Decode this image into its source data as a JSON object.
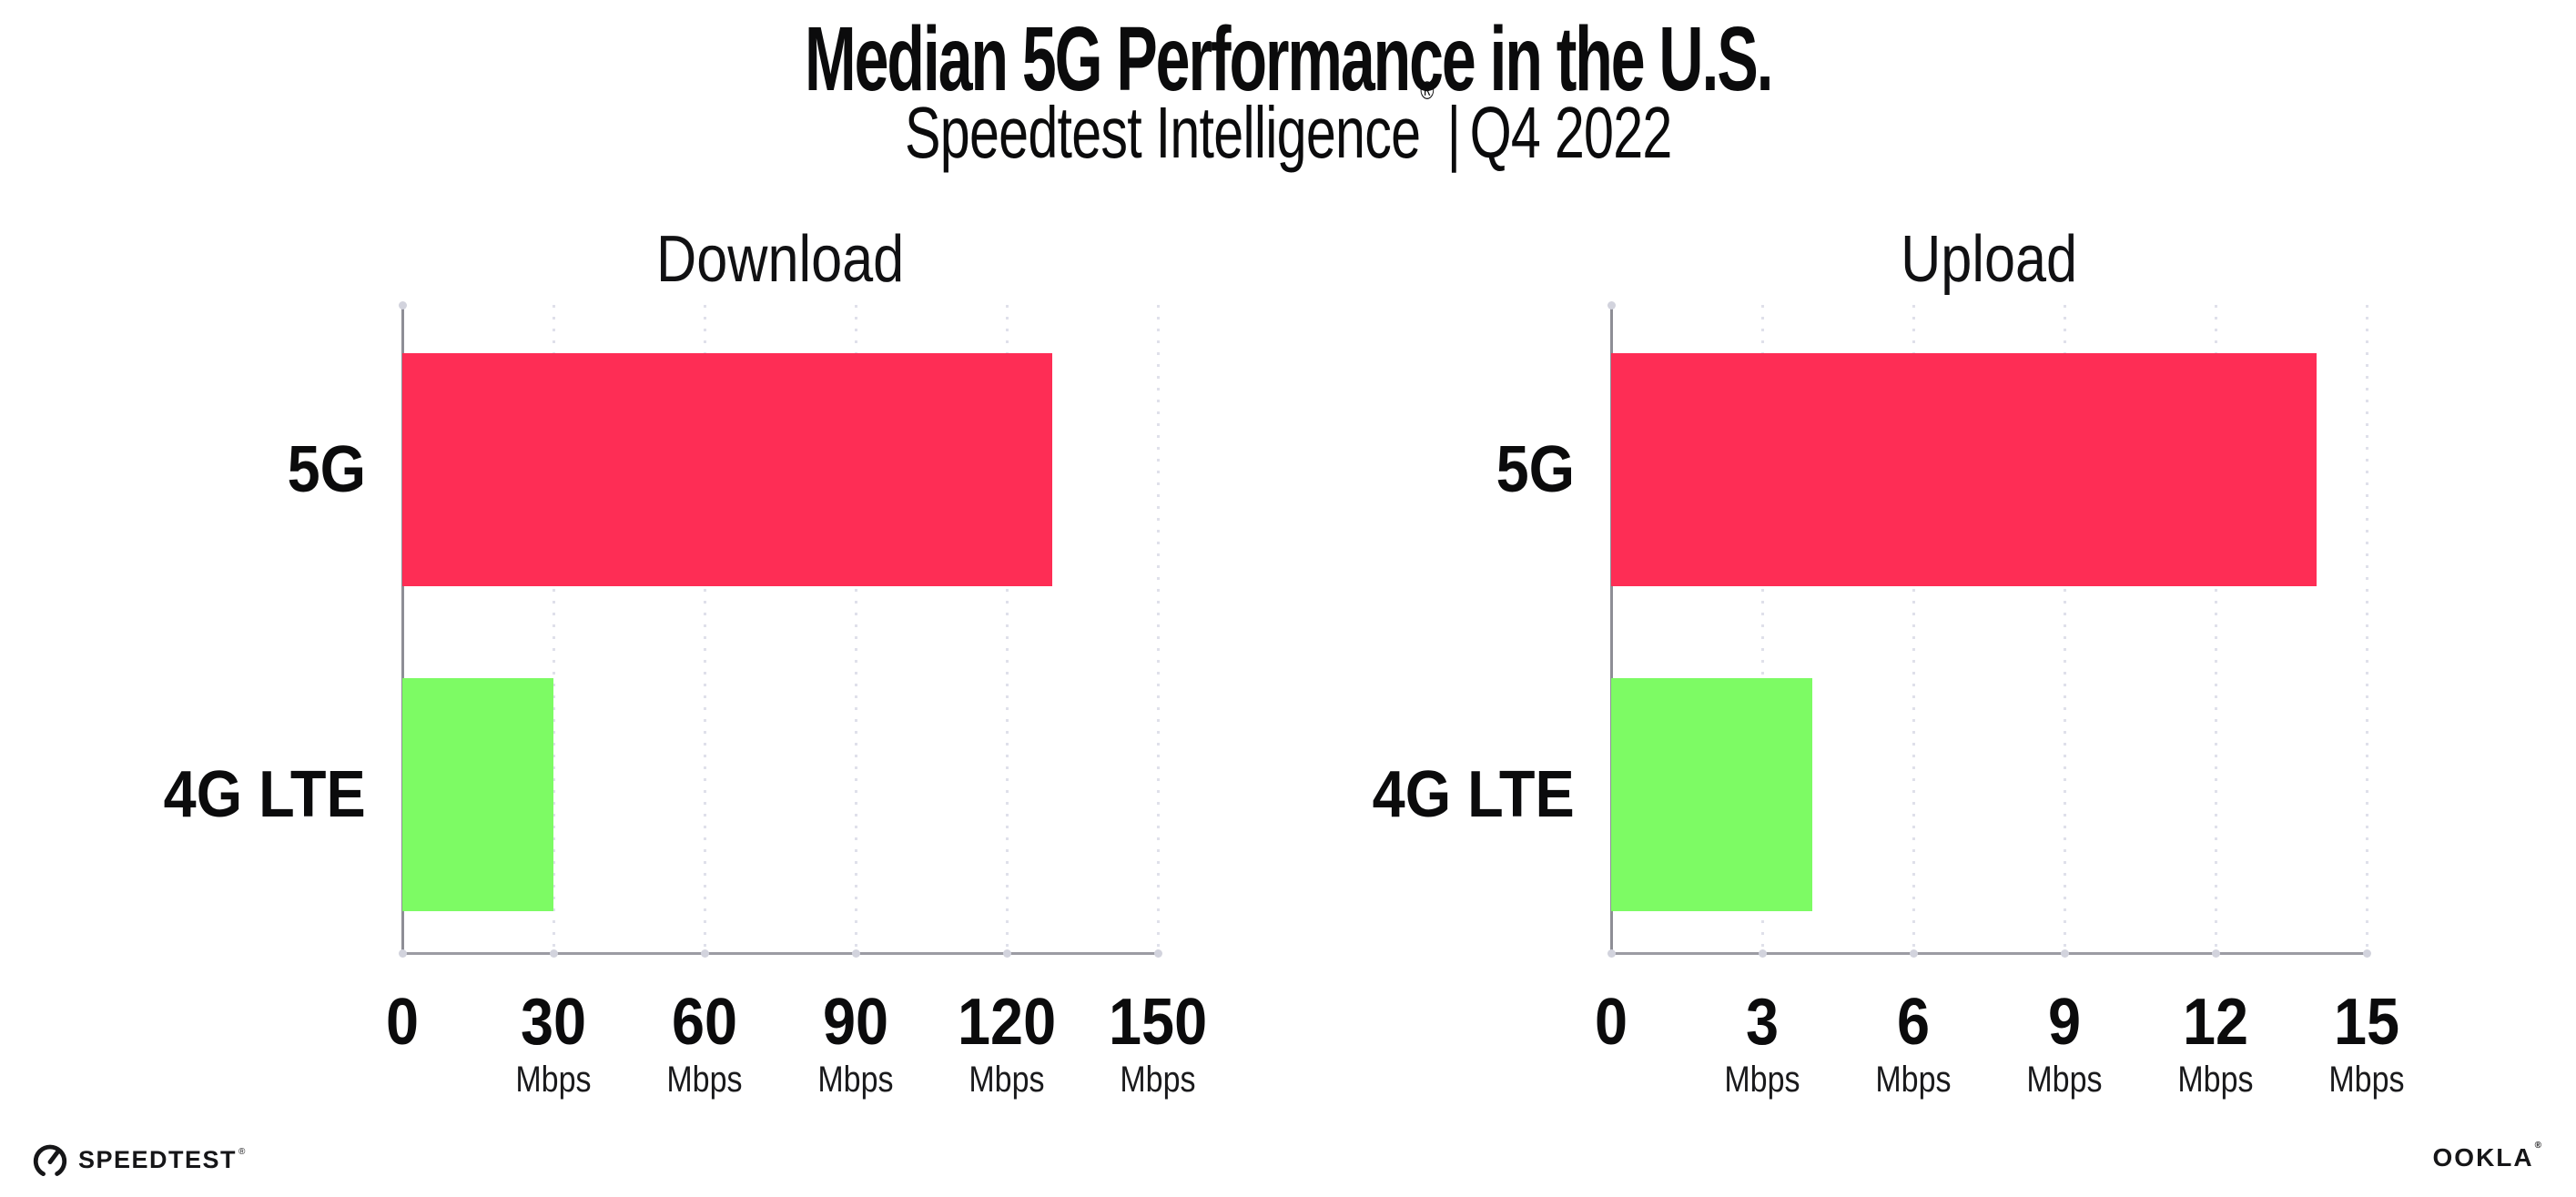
{
  "header": {
    "title": "Median 5G Performance in the U.S.",
    "subtitle_brand": "Speedtest Intelligence",
    "subtitle_reg": "®",
    "subtitle_sep": "|",
    "subtitle_period": "Q4 2022"
  },
  "colors": {
    "bar_5g": "#FE2D55",
    "bar_4g_lte": "#7DFB64",
    "gridline": "#dfe0ea",
    "axis": "#8e8e96",
    "text": "#0b0b0c"
  },
  "chart_data": [
    {
      "type": "bar",
      "orientation": "horizontal",
      "title": "Download",
      "categories": [
        "5G",
        "4G LTE"
      ],
      "values": [
        129,
        30
      ],
      "bar_colors": [
        "#FE2D55",
        "#7DFB64"
      ],
      "unit": "Mbps",
      "xlabel": "",
      "ylabel": "",
      "xlim": [
        0,
        150
      ],
      "ticks": [
        0,
        30,
        60,
        90,
        120,
        150
      ],
      "grid": "vertical-dotted",
      "legend_position": "none"
    },
    {
      "type": "bar",
      "orientation": "horizontal",
      "title": "Upload",
      "categories": [
        "5G",
        "4G LTE"
      ],
      "values": [
        14,
        4
      ],
      "bar_colors": [
        "#FE2D55",
        "#7DFB64"
      ],
      "unit": "Mbps",
      "xlabel": "",
      "ylabel": "",
      "xlim": [
        0,
        15
      ],
      "ticks": [
        0,
        3,
        6,
        9,
        12,
        15
      ],
      "grid": "vertical-dotted",
      "legend_position": "none"
    }
  ],
  "footer": {
    "speedtest_label": "SPEEDTEST",
    "speedtest_mark": "®",
    "ookla_label": "OOKLA",
    "ookla_mark": "®"
  }
}
